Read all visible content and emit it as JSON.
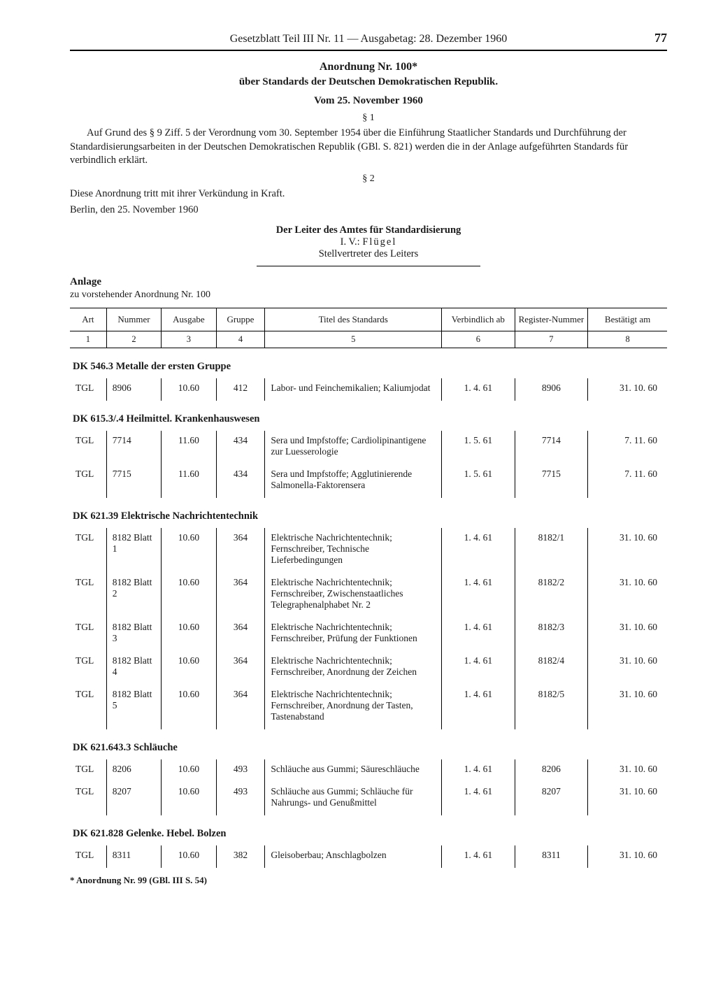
{
  "header": {
    "running": "Gesetzblatt Teil III Nr. 11 — Ausgabetag: 28. Dezember 1960",
    "page": "77"
  },
  "title": {
    "main": "Anordnung Nr. 100*",
    "sub": "über Standards der Deutschen Demokratischen Republik.",
    "date": "Vom 25. November 1960"
  },
  "sections": {
    "s1": "§ 1",
    "p1": "Auf Grund des § 9 Ziff. 5 der Verordnung vom 30. September 1954 über die Einführung Staatlicher Standards und Durchführung der Standardisierungsarbeiten in der Deutschen Demokratischen Republik (GBl. S. 821) werden die in der Anlage aufgeführten Standards für verbindlich erklärt.",
    "s2": "§ 2",
    "p2": "Diese Anordnung tritt mit ihrer Verkündung in Kraft.",
    "p3": "Berlin, den 25. November 1960",
    "sig1": "Der Leiter des Amtes für Standardisierung",
    "sig2a": "I. V.: ",
    "sig2b": "Flügel",
    "sig3": "Stellvertreter des Leiters"
  },
  "anlage": {
    "h": "Anlage",
    "sub": "zu vorstehender Anordnung Nr. 100"
  },
  "table": {
    "columns": [
      "Art",
      "Nummer",
      "Ausgabe",
      "Gruppe",
      "Titel des Standards",
      "Verbindlich ab",
      "Register-Nummer",
      "Bestätigt am"
    ],
    "numrow": [
      "1",
      "2",
      "3",
      "4",
      "5",
      "6",
      "7",
      "8"
    ],
    "groups": [
      {
        "head": "DK 546.3 Metalle der ersten Gruppe",
        "rows": [
          {
            "art": "TGL",
            "num": "8906",
            "ausg": "10.60",
            "grp": "412",
            "titel": "Labor- und Feinchemikalien; Kaliumjodat",
            "verb": "1. 4. 61",
            "reg": "8906",
            "best": "31. 10. 60"
          }
        ]
      },
      {
        "head": "DK 615.3/.4 Heilmittel. Krankenhauswesen",
        "rows": [
          {
            "art": "TGL",
            "num": "7714",
            "ausg": "11.60",
            "grp": "434",
            "titel": "Sera und Impfstoffe; Cardio­lipinantigene zur Luesserologie",
            "verb": "1. 5. 61",
            "reg": "7714",
            "best": "7. 11. 60"
          },
          {
            "art": "TGL",
            "num": "7715",
            "ausg": "11.60",
            "grp": "434",
            "titel": "Sera und Impfstoffe; Agglutinierende Salmonella-Faktorensera",
            "verb": "1. 5. 61",
            "reg": "7715",
            "best": "7. 11. 60"
          }
        ]
      },
      {
        "head": "DK 621.39 Elektrische Nachrichtentechnik",
        "rows": [
          {
            "art": "TGL",
            "num": "8182 Blatt 1",
            "ausg": "10.60",
            "grp": "364",
            "titel": "Elektrische Nachrichtentechnik; Fernschreiber, Technische Lieferbedingungen",
            "verb": "1. 4. 61",
            "reg": "8182/1",
            "best": "31. 10. 60"
          },
          {
            "art": "TGL",
            "num": "8182 Blatt 2",
            "ausg": "10.60",
            "grp": "364",
            "titel": "Elektrische Nachrichtentechnik; Fernschreiber, Zwischenstaat­liches Telegraphenalphabet Nr. 2",
            "verb": "1. 4. 61",
            "reg": "8182/2",
            "best": "31. 10. 60"
          },
          {
            "art": "TGL",
            "num": "8182 Blatt 3",
            "ausg": "10.60",
            "grp": "364",
            "titel": "Elektrische Nachrichtentechnik; Fernschreiber, Prüfung der Funktionen",
            "verb": "1. 4. 61",
            "reg": "8182/3",
            "best": "31. 10. 60"
          },
          {
            "art": "TGL",
            "num": "8182 Blatt 4",
            "ausg": "10.60",
            "grp": "364",
            "titel": "Elektrische Nachrichtentechnik; Fernschreiber, Anordnung der Zeichen",
            "verb": "1. 4. 61",
            "reg": "8182/4",
            "best": "31. 10. 60"
          },
          {
            "art": "TGL",
            "num": "8182 Blatt 5",
            "ausg": "10.60",
            "grp": "364",
            "titel": "Elektrische Nachrichtentechnik; Fernschreiber, Anordnung der Tasten, Tastenabstand",
            "verb": "1. 4. 61",
            "reg": "8182/5",
            "best": "31. 10. 60"
          }
        ]
      },
      {
        "head": "DK 621.643.3 Schläuche",
        "rows": [
          {
            "art": "TGL",
            "num": "8206",
            "ausg": "10.60",
            "grp": "493",
            "titel": "Schläuche aus Gummi; Säureschläuche",
            "verb": "1. 4. 61",
            "reg": "8206",
            "best": "31. 10. 60"
          },
          {
            "art": "TGL",
            "num": "8207",
            "ausg": "10.60",
            "grp": "493",
            "titel": "Schläuche aus Gummi; Schläuche für Nahrungs- und Genußmittel",
            "verb": "1. 4. 61",
            "reg": "8207",
            "best": "31. 10. 60"
          }
        ]
      },
      {
        "head": "DK 621.828 Gelenke. Hebel. Bolzen",
        "rows": [
          {
            "art": "TGL",
            "num": "8311",
            "ausg": "10.60",
            "grp": "382",
            "titel": "Gleisoberbau; Anschlagbolzen",
            "verb": "1. 4. 61",
            "reg": "8311",
            "best": "31. 10. 60"
          }
        ]
      }
    ]
  },
  "footnote": "* Anordnung Nr. 99 (GBl. III S. 54)"
}
